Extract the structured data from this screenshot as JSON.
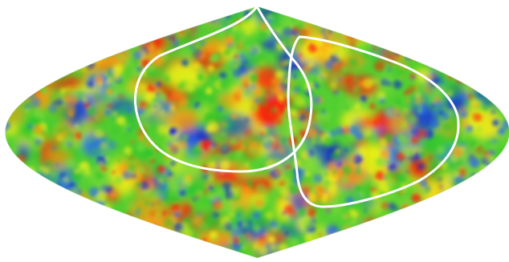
{
  "image": {
    "subject": "sky-map",
    "projection": "sinusoidal",
    "palette": {
      "background": "#ffffff",
      "deep_blue": "#0a1bd8",
      "blue": "#2a6cf0",
      "green": "#2fc52b",
      "light_green": "#7bd83a",
      "yellow": "#f0f018",
      "orange": "#ff9a14",
      "red": "#ff1a0a",
      "circle_stroke": "#ffffff"
    },
    "overlay": {
      "circles_count": 2,
      "description": ""
    }
  }
}
